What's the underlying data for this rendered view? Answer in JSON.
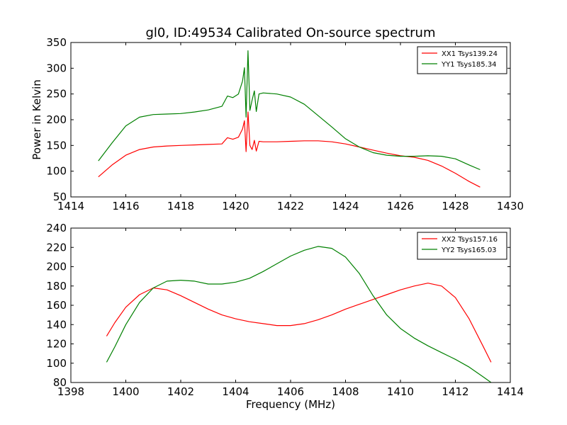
{
  "chart_data": [
    {
      "type": "line",
      "title": "gl0, ID:49534 Calibrated On-source spectrum",
      "xlabel": "",
      "ylabel": "Power in Kelvin",
      "xlim": [
        1414,
        1430
      ],
      "ylim": [
        50,
        350
      ],
      "xticks": [
        "1414",
        "1416",
        "1418",
        "1420",
        "1422",
        "1424",
        "1426",
        "1428",
        "1430"
      ],
      "yticks": [
        "50",
        "100",
        "150",
        "200",
        "250",
        "300",
        "350"
      ],
      "legend_position": "top-right",
      "series": [
        {
          "name": "XX1 Tsys139.24",
          "color": "#ff0000",
          "x": [
            1415,
            1415.5,
            1416,
            1416.5,
            1417,
            1417.5,
            1418,
            1418.5,
            1419,
            1419.5,
            1419.7,
            1419.9,
            1420.1,
            1420.25,
            1420.32,
            1420.38,
            1420.45,
            1420.52,
            1420.6,
            1420.68,
            1420.75,
            1420.85,
            1421,
            1421.5,
            1422,
            1422.5,
            1423,
            1423.5,
            1424,
            1424.5,
            1425,
            1425.5,
            1426,
            1426.5,
            1427,
            1427.5,
            1428,
            1428.5,
            1428.9
          ],
          "y": [
            89,
            112,
            131,
            142,
            147,
            149,
            150,
            151,
            152,
            153,
            165,
            162,
            166,
            182,
            198,
            138,
            215,
            150,
            142,
            160,
            139,
            158,
            157,
            157,
            158,
            159,
            159,
            157,
            153,
            147,
            141,
            135,
            130,
            127,
            121,
            110,
            96,
            80,
            69
          ]
        },
        {
          "name": "YY1 Tsys185.34",
          "color": "#008000",
          "x": [
            1415,
            1415.5,
            1416,
            1416.5,
            1417,
            1417.5,
            1418,
            1418.5,
            1419,
            1419.5,
            1419.7,
            1419.9,
            1420.1,
            1420.25,
            1420.32,
            1420.38,
            1420.45,
            1420.52,
            1420.6,
            1420.68,
            1420.75,
            1420.85,
            1421,
            1421.5,
            1422,
            1422.5,
            1423,
            1423.5,
            1424,
            1424.5,
            1425,
            1425.5,
            1426,
            1426.5,
            1427,
            1427.5,
            1428,
            1428.5,
            1428.9
          ],
          "y": [
            120,
            155,
            188,
            205,
            210,
            211,
            212,
            215,
            219,
            226,
            246,
            243,
            250,
            275,
            301,
            205,
            334,
            218,
            238,
            256,
            216,
            250,
            252,
            250,
            244,
            230,
            208,
            186,
            163,
            147,
            136,
            131,
            129,
            129,
            130,
            129,
            124,
            112,
            103
          ]
        }
      ]
    },
    {
      "type": "line",
      "title": "",
      "xlabel": "Frequency (MHz)",
      "ylabel": "",
      "xlim": [
        1398,
        1414
      ],
      "ylim": [
        80,
        240
      ],
      "xticks": [
        "1398",
        "1400",
        "1402",
        "1404",
        "1406",
        "1408",
        "1410",
        "1412",
        "1414"
      ],
      "yticks": [
        "80",
        "100",
        "120",
        "140",
        "160",
        "180",
        "200",
        "220",
        "240"
      ],
      "legend_position": "top-right",
      "series": [
        {
          "name": "XX2 Tsys157.16",
          "color": "#ff0000",
          "x": [
            1399.3,
            1399.6,
            1400,
            1400.5,
            1401,
            1401.5,
            1402,
            1402.5,
            1403,
            1403.5,
            1404,
            1404.5,
            1405,
            1405.5,
            1406,
            1406.5,
            1407,
            1407.5,
            1408,
            1408.5,
            1409,
            1409.5,
            1410,
            1410.5,
            1411,
            1411.5,
            1412,
            1412.5,
            1413,
            1413.3
          ],
          "y": [
            128,
            142,
            158,
            171,
            178,
            176,
            170,
            163,
            156,
            150,
            146,
            143,
            141,
            139,
            139,
            141,
            145,
            150,
            156,
            161,
            166,
            171,
            176,
            180,
            183,
            180,
            168,
            146,
            118,
            101
          ]
        },
        {
          "name": "YY2 Tsys165.03",
          "color": "#008000",
          "x": [
            1399.3,
            1399.6,
            1400,
            1400.5,
            1401,
            1401.5,
            1402,
            1402.5,
            1403,
            1403.5,
            1404,
            1404.5,
            1405,
            1405.5,
            1406,
            1406.5,
            1407,
            1407.5,
            1408,
            1408.5,
            1409,
            1409.5,
            1410,
            1410.5,
            1411,
            1411.5,
            1412,
            1412.5,
            1413,
            1413.3
          ],
          "y": [
            101,
            117,
            140,
            163,
            178,
            185,
            186,
            185,
            182,
            182,
            184,
            188,
            195,
            203,
            211,
            217,
            221,
            219,
            210,
            193,
            170,
            150,
            136,
            126,
            118,
            111,
            104,
            96,
            86,
            80
          ]
        }
      ]
    }
  ]
}
